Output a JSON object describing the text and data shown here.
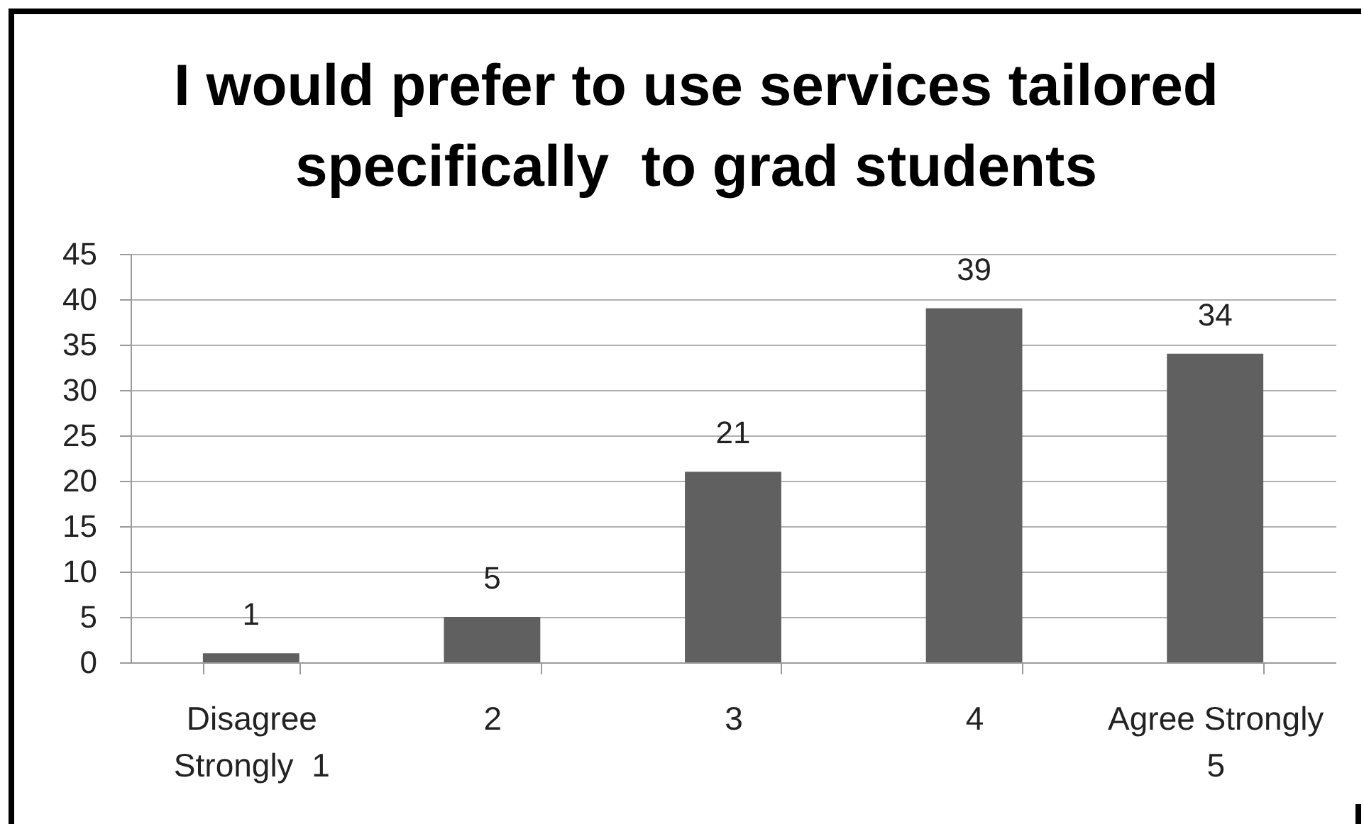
{
  "chart_data": {
    "type": "bar",
    "title": "I would prefer to use services tailored specifically  to grad students",
    "categories": [
      "Disagree Strongly  1",
      "2",
      "3",
      "4",
      "Agree Strongly 5"
    ],
    "values": [
      1,
      5,
      21,
      39,
      34
    ],
    "color": "#606060",
    "ylim": [
      0,
      45
    ],
    "yticks": [
      0,
      5,
      10,
      15,
      20,
      25,
      30,
      35,
      40,
      45
    ],
    "grid": "y",
    "data_labels": true
  }
}
